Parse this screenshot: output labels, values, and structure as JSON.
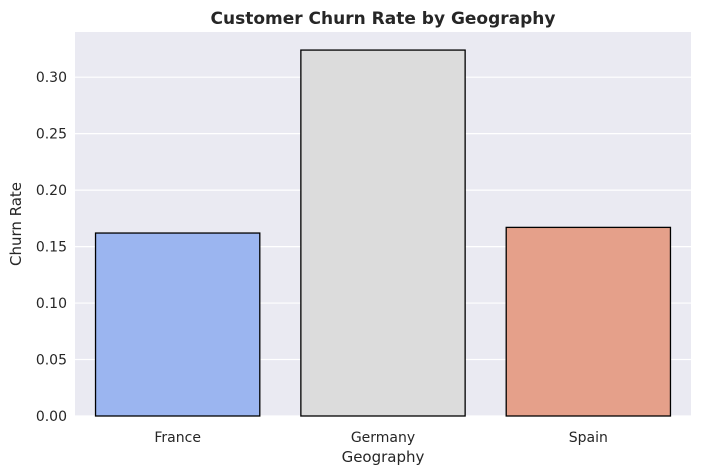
{
  "chart_data": {
    "type": "bar",
    "title": "Customer Churn Rate by Geography",
    "xlabel": "Geography",
    "ylabel": "Churn Rate",
    "categories": [
      "France",
      "Germany",
      "Spain"
    ],
    "values": [
      0.162,
      0.324,
      0.167
    ],
    "ylim": [
      0,
      0.34
    ],
    "yticks": [
      0.0,
      0.05,
      0.1,
      0.15,
      0.2,
      0.25,
      0.3
    ],
    "ytick_labels": [
      "0.00",
      "0.05",
      "0.10",
      "0.15",
      "0.20",
      "0.25",
      "0.30"
    ],
    "bar_colors": [
      "#9bb5f0",
      "#dcdcdc",
      "#e5a08a"
    ],
    "bar_edge_color": "#000000",
    "plot_background": "#eaeaf2",
    "grid": true,
    "grid_color": "#ffffff",
    "legend": "none"
  }
}
